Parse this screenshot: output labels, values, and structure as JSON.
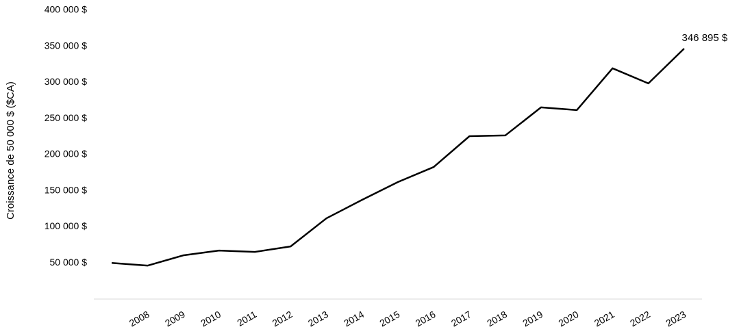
{
  "chart_data": {
    "type": "line",
    "y_label": "Croissance de 50 000 $ ($CA)",
    "categories": [
      null,
      "2008",
      "2009",
      "2010",
      "2011",
      "2012",
      "2013",
      "2014",
      "2015",
      "2016",
      "2017",
      "2018",
      "2019",
      "2020",
      "2021",
      "2022",
      "2023"
    ],
    "values": [
      50000,
      46300,
      60500,
      67200,
      65300,
      72900,
      111800,
      137400,
      162100,
      182900,
      225600,
      226600,
      265500,
      261700,
      319600,
      298700,
      346895
    ],
    "value_labels": [
      null,
      null,
      null,
      null,
      null,
      null,
      null,
      null,
      null,
      null,
      null,
      null,
      null,
      null,
      null,
      null,
      "346 895 $"
    ],
    "color": "#000000",
    "ylim": [
      0,
      400000
    ],
    "yticks": [
      {
        "value": 50000,
        "label": "50 000 $"
      },
      {
        "value": 100000,
        "label": "100 000 $"
      },
      {
        "value": 150000,
        "label": "150 000 $"
      },
      {
        "value": 200000,
        "label": "200 000 $"
      },
      {
        "value": 250000,
        "label": "250 000 $"
      },
      {
        "value": 300000,
        "label": "300 000 $"
      },
      {
        "value": 350000,
        "label": "350 000 $"
      },
      {
        "value": 400000,
        "label": "400 000 $"
      }
    ],
    "grid": false
  }
}
